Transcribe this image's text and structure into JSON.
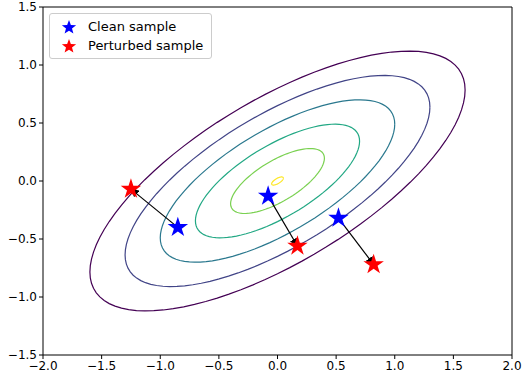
{
  "chart_data": {
    "type": "scatter",
    "xlim": [
      -2,
      2
    ],
    "ylim": [
      -1.5,
      1.5
    ],
    "xticks": [
      {
        "value": -2,
        "label": "−2.0"
      },
      {
        "value": -1.5,
        "label": "−1.5"
      },
      {
        "value": -1,
        "label": "−1.0"
      },
      {
        "value": -0.5,
        "label": "−0.5"
      },
      {
        "value": 0,
        "label": "0.0"
      },
      {
        "value": 0.5,
        "label": "0.5"
      },
      {
        "value": 1,
        "label": "1.0"
      },
      {
        "value": 1.5,
        "label": "1.5"
      },
      {
        "value": 2,
        "label": "2.0"
      }
    ],
    "yticks": [
      {
        "value": -1.5,
        "label": "−1.5"
      },
      {
        "value": -1,
        "label": "−1.0"
      },
      {
        "value": -0.5,
        "label": "−0.5"
      },
      {
        "value": 0,
        "label": "0.0"
      },
      {
        "value": 0.5,
        "label": "0.5"
      },
      {
        "value": 1,
        "label": "1.0"
      },
      {
        "value": 1.5,
        "label": "1.5"
      }
    ],
    "legend": "upper left",
    "series": [
      {
        "name": "Clean sample",
        "color": "#0000ff",
        "marker": "star",
        "x": [
          -0.85,
          -0.08,
          0.52
        ],
        "y": [
          -0.4,
          -0.13,
          -0.32
        ]
      },
      {
        "name": "Perturbed sample",
        "color": "#ff0000",
        "marker": "star",
        "x": [
          -1.25,
          0.17,
          0.82
        ],
        "y": [
          -0.07,
          -0.56,
          -0.72
        ]
      }
    ],
    "arrows": {
      "from": "Clean sample",
      "to": "Perturbed sample"
    },
    "contours": {
      "mean": [
        0.0,
        0.0
      ],
      "cov": [
        [
          1.0,
          0.49
        ],
        [
          0.49,
          0.49
        ]
      ],
      "levels": [
        1.6,
        1.3,
        1.0,
        0.7,
        0.4,
        0.05
      ],
      "colors": [
        "#440154",
        "#414487",
        "#2a788e",
        "#22a884",
        "#7ad151",
        "#fde725"
      ]
    }
  }
}
